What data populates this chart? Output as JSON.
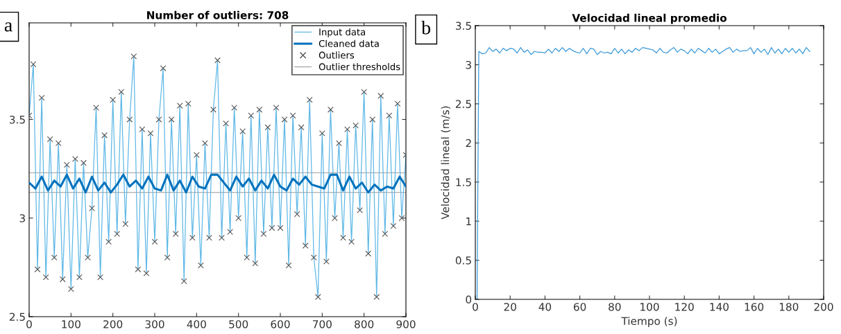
{
  "chart_data": [
    {
      "type": "line",
      "title": "Number of outliers: 708",
      "annotations": [
        "a"
      ],
      "xlim": [
        0,
        900
      ],
      "xticks": [
        0,
        100,
        200,
        300,
        400,
        500,
        600,
        700,
        800,
        900
      ],
      "ylim": [
        2.5,
        3.99
      ],
      "yticks": [
        2.5,
        3,
        3.5
      ],
      "legend": "top right",
      "series": [
        {
          "name": "Input data",
          "type": "line",
          "color": "#5fb8e6",
          "x": [
            0,
            10,
            20,
            30,
            40,
            50,
            60,
            70,
            80,
            90,
            100,
            110,
            120,
            130,
            140,
            150,
            160,
            170,
            180,
            190,
            200,
            210,
            220,
            230,
            240,
            250,
            260,
            270,
            280,
            290,
            300,
            310,
            320,
            330,
            340,
            350,
            360,
            370,
            380,
            390,
            400,
            410,
            420,
            430,
            440,
            450,
            460,
            470,
            480,
            490,
            500,
            510,
            520,
            530,
            540,
            550,
            560,
            570,
            580,
            590,
            600,
            610,
            620,
            630,
            640,
            650,
            660,
            670,
            680,
            690,
            700,
            710,
            720,
            730,
            740,
            750,
            760,
            770,
            780,
            790,
            800,
            810,
            820,
            830,
            840,
            850,
            860,
            870,
            880,
            890,
            900
          ],
          "values": [
            3.52,
            3.78,
            2.74,
            3.61,
            2.7,
            3.4,
            2.8,
            3.38,
            2.69,
            3.27,
            2.64,
            3.3,
            2.7,
            3.28,
            2.8,
            3.05,
            3.56,
            2.7,
            3.42,
            2.88,
            3.6,
            2.92,
            3.64,
            2.97,
            3.5,
            3.82,
            2.74,
            3.45,
            2.72,
            3.43,
            2.88,
            3.5,
            3.76,
            2.8,
            3.5,
            2.92,
            3.57,
            2.68,
            3.58,
            2.9,
            3.32,
            2.76,
            3.38,
            2.9,
            3.55,
            3.8,
            2.9,
            3.48,
            2.93,
            3.56,
            3.0,
            3.44,
            2.8,
            3.52,
            2.77,
            3.55,
            2.92,
            3.46,
            2.95,
            3.56,
            2.95,
            3.5,
            2.76,
            3.52,
            3.02,
            3.46,
            2.86,
            3.6,
            2.8,
            2.6,
            3.43,
            2.78,
            3.55,
            3.0,
            3.38,
            2.9,
            3.45,
            2.88,
            3.47,
            3.04,
            3.64,
            2.82,
            3.5,
            2.6,
            3.62,
            2.92,
            3.52,
            2.96,
            3.58,
            3.0,
            3.32
          ]
        },
        {
          "name": "Cleaned data",
          "type": "line",
          "color": "#0072bd",
          "x": [
            0,
            15,
            30,
            45,
            60,
            75,
            90,
            105,
            120,
            135,
            150,
            165,
            180,
            195,
            210,
            225,
            240,
            255,
            270,
            285,
            300,
            315,
            330,
            345,
            360,
            375,
            390,
            405,
            420,
            435,
            450,
            465,
            480,
            495,
            510,
            525,
            540,
            555,
            570,
            585,
            600,
            615,
            630,
            645,
            660,
            675,
            690,
            705,
            720,
            735,
            750,
            765,
            780,
            795,
            810,
            825,
            840,
            855,
            870,
            885,
            900
          ],
          "values": [
            3.18,
            3.15,
            3.21,
            3.14,
            3.19,
            3.16,
            3.22,
            3.15,
            3.2,
            3.13,
            3.21,
            3.14,
            3.18,
            3.13,
            3.17,
            3.22,
            3.16,
            3.19,
            3.15,
            3.21,
            3.15,
            3.14,
            3.22,
            3.14,
            3.19,
            3.13,
            3.21,
            3.16,
            3.15,
            3.22,
            3.22,
            3.18,
            3.14,
            3.21,
            3.16,
            3.2,
            3.14,
            3.19,
            3.15,
            3.22,
            3.16,
            3.14,
            3.2,
            3.17,
            3.21,
            3.17,
            3.16,
            3.15,
            3.22,
            3.22,
            3.14,
            3.21,
            3.15,
            3.18,
            3.13,
            3.17,
            3.14,
            3.16,
            3.15,
            3.21,
            3.16
          ]
        },
        {
          "name": "Outliers",
          "type": "scatter",
          "marker": "cross",
          "color": "#555555",
          "x": [
            0,
            10,
            20,
            30,
            40,
            50,
            60,
            70,
            80,
            90,
            100,
            110,
            120,
            130,
            140,
            150,
            160,
            170,
            180,
            190,
            200,
            210,
            220,
            230,
            240,
            250,
            260,
            270,
            280,
            290,
            300,
            310,
            320,
            330,
            340,
            350,
            360,
            370,
            380,
            390,
            400,
            410,
            420,
            430,
            440,
            450,
            460,
            470,
            480,
            490,
            500,
            510,
            520,
            530,
            540,
            550,
            560,
            570,
            580,
            590,
            600,
            610,
            620,
            630,
            640,
            650,
            660,
            670,
            680,
            690,
            700,
            710,
            720,
            730,
            740,
            750,
            760,
            770,
            780,
            790,
            800,
            810,
            820,
            830,
            840,
            850,
            860,
            870,
            880,
            890,
            900
          ],
          "values": [
            3.52,
            3.78,
            2.74,
            3.61,
            2.7,
            3.4,
            2.8,
            3.38,
            2.69,
            3.27,
            2.64,
            3.3,
            2.7,
            3.28,
            2.8,
            3.05,
            3.56,
            2.7,
            3.42,
            2.88,
            3.6,
            2.92,
            3.64,
            2.97,
            3.5,
            3.82,
            2.74,
            3.45,
            2.72,
            3.43,
            2.88,
            3.5,
            3.76,
            2.8,
            3.5,
            2.92,
            3.57,
            2.68,
            3.58,
            2.9,
            3.32,
            2.76,
            3.38,
            2.9,
            3.55,
            3.8,
            2.9,
            3.48,
            2.93,
            3.56,
            3.0,
            3.44,
            2.8,
            3.52,
            2.77,
            3.55,
            2.92,
            3.46,
            2.95,
            3.56,
            2.95,
            3.5,
            2.76,
            3.52,
            3.02,
            3.46,
            2.86,
            3.6,
            2.8,
            2.6,
            3.43,
            2.78,
            3.55,
            3.0,
            3.38,
            2.9,
            3.45,
            2.88,
            3.47,
            3.04,
            3.64,
            2.82,
            3.5,
            2.6,
            3.62,
            2.92,
            3.52,
            2.96,
            3.58,
            3.0,
            3.32
          ]
        }
      ],
      "ref_lines": [
        {
          "axis": "y",
          "value": 3.23,
          "label": "Outlier thresholds",
          "color": "#999999"
        },
        {
          "axis": "y",
          "value": 3.13,
          "color": "#999999"
        }
      ]
    },
    {
      "type": "line",
      "title": "Velocidad lineal promedio",
      "xlabel": "Tiempo (s)",
      "ylabel": "Velocidad lineal (m/s)",
      "annotations": [
        "b"
      ],
      "xlim": [
        0,
        200
      ],
      "xticks": [
        0,
        20,
        40,
        60,
        80,
        100,
        120,
        140,
        160,
        180,
        200
      ],
      "ylim": [
        0,
        3.5
      ],
      "yticks": [
        0,
        0.5,
        1,
        1.5,
        2,
        2.5,
        3,
        3.5
      ],
      "series": [
        {
          "color": "#3a9ad9",
          "x": [
            1,
            2,
            4,
            6,
            8,
            10,
            12,
            14,
            16,
            18,
            20,
            22,
            24,
            26,
            28,
            30,
            32,
            34,
            36,
            38,
            40,
            42,
            44,
            46,
            48,
            50,
            52,
            54,
            56,
            58,
            60,
            62,
            64,
            66,
            68,
            70,
            72,
            74,
            76,
            78,
            80,
            82,
            84,
            86,
            88,
            90,
            92,
            94,
            96,
            98,
            100,
            102,
            104,
            106,
            108,
            110,
            112,
            114,
            116,
            118,
            120,
            122,
            124,
            126,
            128,
            130,
            132,
            134,
            136,
            138,
            140,
            142,
            144,
            146,
            148,
            150,
            152,
            154,
            156,
            158,
            160,
            162,
            164,
            166,
            168,
            170,
            172,
            174,
            176,
            178,
            180,
            182,
            184,
            186,
            188,
            190,
            192
          ],
          "values": [
            0,
            3.17,
            3.14,
            3.15,
            3.22,
            3.17,
            3.2,
            3.15,
            3.21,
            3.18,
            3.21,
            3.2,
            3.15,
            3.22,
            3.16,
            3.19,
            3.13,
            3.17,
            3.16,
            3.16,
            3.15,
            3.2,
            3.15,
            3.21,
            3.17,
            3.22,
            3.17,
            3.21,
            3.18,
            3.16,
            3.15,
            3.21,
            3.14,
            3.21,
            3.2,
            3.13,
            3.17,
            3.15,
            3.16,
            3.14,
            3.21,
            3.15,
            3.2,
            3.14,
            3.19,
            3.16,
            3.21,
            3.18,
            3.22,
            3.21,
            3.2,
            3.19,
            3.15,
            3.21,
            3.16,
            3.15,
            3.19,
            3.22,
            3.16,
            3.2,
            3.18,
            3.14,
            3.2,
            3.15,
            3.21,
            3.18,
            3.15,
            3.21,
            3.16,
            3.2,
            3.14,
            3.17,
            3.2,
            3.22,
            3.16,
            3.2,
            3.17,
            3.18,
            3.18,
            3.22,
            3.14,
            3.21,
            3.16,
            3.2,
            3.13,
            3.22,
            3.15,
            3.2,
            3.14,
            3.21,
            3.16,
            3.21,
            3.15,
            3.2,
            3.14,
            3.22,
            3.17
          ]
        }
      ]
    }
  ]
}
